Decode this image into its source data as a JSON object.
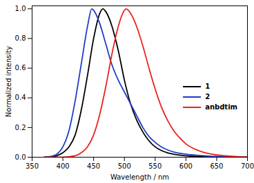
{
  "chart_data": {
    "type": "line",
    "x_label": "Wavelength / nm",
    "y_label": "Normalized intensity",
    "xlim": [
      350,
      700
    ],
    "xticks": [
      350,
      400,
      450,
      500,
      550,
      600,
      650,
      700
    ],
    "ylim": [
      0,
      1.02
    ],
    "yticks": [
      {
        "value": 0,
        "label": "0.0"
      },
      0.2,
      0.4,
      0.6,
      0.8,
      {
        "value": 1,
        "label": "1.0"
      }
    ],
    "legend": "right",
    "grid": false,
    "series": [
      {
        "name": "1",
        "color": "#000000",
        "x": [
          370,
          380,
          390,
          400,
          410,
          420,
          430,
          440,
          450,
          460,
          465,
          470,
          480,
          490,
          500,
          510,
          520,
          530,
          540,
          550,
          560,
          570,
          580,
          600,
          650,
          700
        ],
        "values": [
          0,
          0,
          0.01,
          0.03,
          0.07,
          0.15,
          0.32,
          0.55,
          0.8,
          0.97,
          1.0,
          0.98,
          0.88,
          0.72,
          0.52,
          0.36,
          0.25,
          0.17,
          0.11,
          0.07,
          0.045,
          0.03,
          0.02,
          0.01,
          0,
          0
        ]
      },
      {
        "name": "2",
        "color": "#1f3cc8",
        "x": [
          370,
          380,
          390,
          400,
          410,
          420,
          430,
          440,
          447,
          450,
          460,
          470,
          480,
          490,
          500,
          510,
          520,
          530,
          540,
          550,
          560,
          570,
          580,
          600,
          650,
          700
        ],
        "values": [
          0,
          0.005,
          0.02,
          0.07,
          0.18,
          0.38,
          0.63,
          0.88,
          1.0,
          0.99,
          0.9,
          0.76,
          0.62,
          0.52,
          0.44,
          0.36,
          0.28,
          0.2,
          0.14,
          0.1,
          0.07,
          0.05,
          0.035,
          0.02,
          0.005,
          0
        ]
      },
      {
        "name": "anbdtim",
        "color": "#e8231e",
        "x": [
          370,
          400,
          420,
          430,
          440,
          450,
          460,
          470,
          480,
          490,
          500,
          503,
          510,
          520,
          530,
          540,
          550,
          560,
          570,
          580,
          590,
          600,
          620,
          650,
          700
        ],
        "values": [
          0,
          0,
          0.01,
          0.03,
          0.07,
          0.15,
          0.29,
          0.48,
          0.7,
          0.88,
          0.99,
          1.0,
          0.97,
          0.88,
          0.75,
          0.6,
          0.46,
          0.34,
          0.25,
          0.18,
          0.13,
          0.09,
          0.045,
          0.015,
          0
        ]
      }
    ]
  }
}
